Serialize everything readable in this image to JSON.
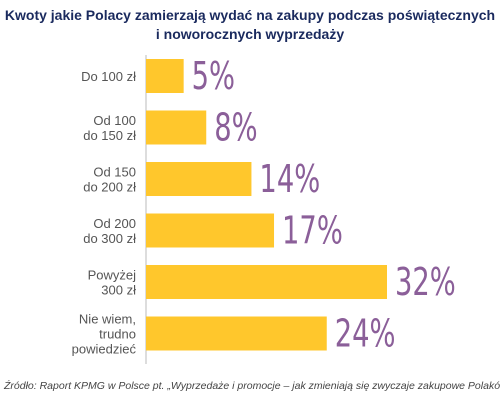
{
  "chart_data": {
    "type": "bar",
    "orientation": "horizontal",
    "title_lines": [
      "Kwoty jakie Polacy zamierzają wydać na zakupy podczas poświątecznych",
      "i noworocznych wyprzedaży"
    ],
    "categories": [
      [
        "Do 100 zł"
      ],
      [
        "Od 100",
        "do 150 zł"
      ],
      [
        "Od 150",
        "do 200 zł"
      ],
      [
        "Od 200",
        "do 300 zł"
      ],
      [
        "Powyżej",
        "300 zł"
      ],
      [
        "Nie wiem,",
        "trudno",
        "powiedzieć"
      ]
    ],
    "values": [
      5,
      8,
      14,
      17,
      32,
      24
    ],
    "value_labels": [
      "5%",
      "8%",
      "14%",
      "17%",
      "32%",
      "24%"
    ],
    "xlim": [
      0,
      32
    ],
    "grid": false,
    "legend": "none"
  },
  "colors": {
    "bar": "#ffc72c",
    "value_label": "#8b5f99",
    "category_label": "#555555",
    "axis": "#bbbbbb",
    "title": "#1a2a5e"
  },
  "source_text": "Źródło: Raport KPMG w Polsce pt. „Wyprzedaże i promocje – jak zmieniają się zwyczaje zakupowe Polaków\""
}
